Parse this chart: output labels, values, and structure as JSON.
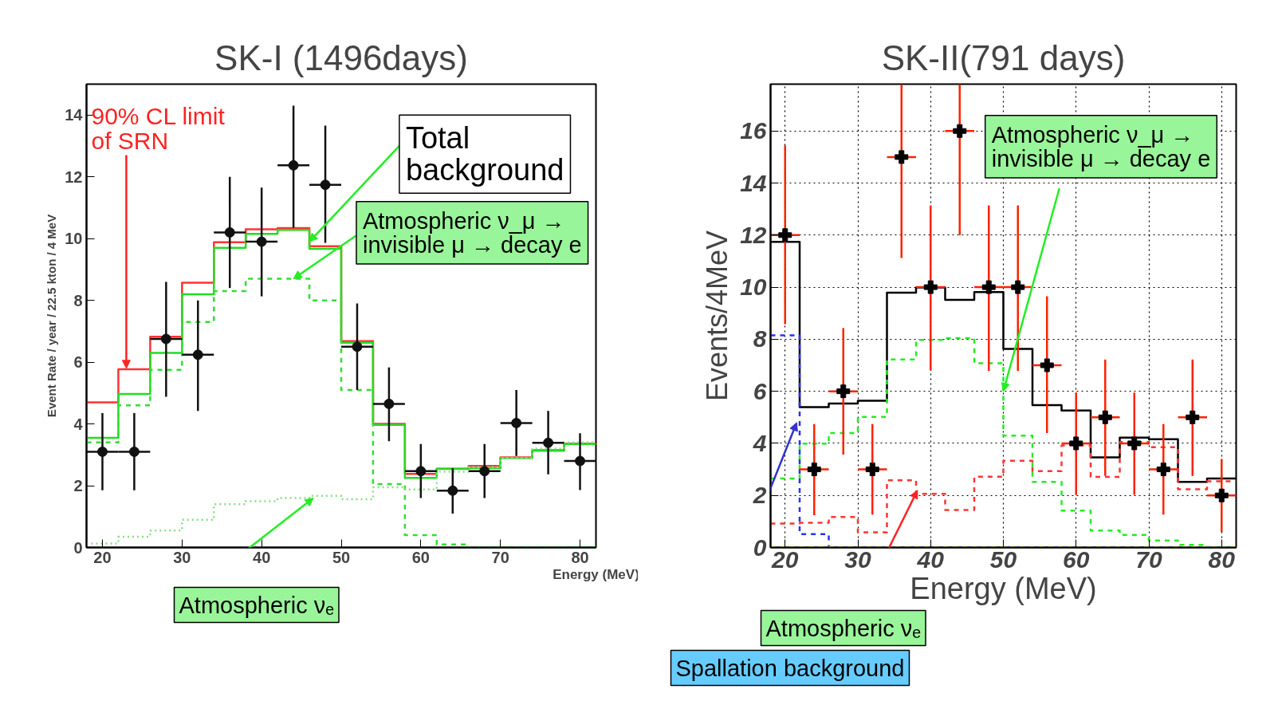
{
  "chart_data": [
    {
      "type": "histogram",
      "title": "SK-I (1496days)",
      "xlabel": "Energy (MeV)",
      "ylabel": "Event Rate / year / 22.5 kton / 4 MeV",
      "bins": [
        18,
        22,
        26,
        30,
        34,
        38,
        42,
        46,
        50,
        54,
        58,
        62,
        66,
        70,
        74,
        78,
        82
      ],
      "xlim": [
        18,
        82
      ],
      "ylim": [
        0,
        15
      ],
      "xticks": [
        20,
        30,
        40,
        50,
        60,
        70,
        80
      ],
      "yticks": [
        0,
        2,
        4,
        6,
        8,
        10,
        12,
        14
      ],
      "grid": false,
      "marker": "circle",
      "series": [
        {
          "color": "#ff3333",
          "line_style": "solid",
          "values": [
            4.7,
            5.77,
            6.82,
            8.57,
            9.88,
            10.3,
            10.34,
            9.75,
            6.68,
            4.0,
            2.38,
            2.55,
            2.64,
            2.92,
            3.15,
            3.36
          ]
        },
        {
          "color": "#22dd22",
          "line_style": "solid",
          "values": [
            3.55,
            4.97,
            6.3,
            8.2,
            9.7,
            10.15,
            10.28,
            9.67,
            6.63,
            3.97,
            2.25,
            2.54,
            2.57,
            2.9,
            3.13,
            3.35
          ]
        },
        {
          "color": "#33dd33",
          "line_style": "dashed",
          "values": [
            3.4,
            4.6,
            5.75,
            7.3,
            8.3,
            8.7,
            8.7,
            8.0,
            5.1,
            2.05,
            0.4,
            0.1,
            0,
            0,
            0,
            0
          ]
        },
        {
          "color": "#88dd88",
          "line_style": "dotted",
          "values": [
            0.13,
            0.35,
            0.55,
            0.9,
            1.4,
            1.5,
            1.6,
            1.67,
            1.56,
            1.95,
            1.88,
            2.45,
            2.6,
            2.9,
            3.2,
            3.4
          ]
        },
        {
          "type": "scatter",
          "color": "#111111",
          "x": [
            20,
            24,
            28,
            32,
            36,
            40,
            44,
            48,
            52,
            56,
            60,
            64,
            68,
            72,
            76,
            80
          ],
          "values": [
            3.1,
            3.1,
            6.75,
            6.24,
            10.2,
            9.9,
            12.37,
            11.74,
            6.5,
            4.65,
            2.47,
            1.84,
            2.47,
            4.03,
            3.39,
            2.8
          ],
          "errors": [
            [
              1.85,
              4.35
            ],
            [
              1.85,
              4.35
            ],
            [
              4.88,
              8.6
            ],
            [
              4.42,
              8.0
            ],
            [
              8.4,
              12.0
            ],
            [
              8.13,
              11.65
            ],
            [
              10.35,
              14.3
            ],
            [
              9.86,
              13.66
            ],
            [
              5.1,
              7.9
            ],
            [
              3.44,
              5.83
            ],
            [
              1.6,
              3.35
            ],
            [
              1.1,
              2.57
            ],
            [
              1.6,
              3.35
            ],
            [
              2.96,
              5.1
            ],
            [
              2.37,
              4.42
            ],
            [
              1.86,
              3.7
            ]
          ],
          "xerrors": [
            2,
            2,
            2,
            2,
            2,
            2,
            2,
            2,
            2,
            2,
            2,
            2,
            2,
            2,
            2,
            2
          ]
        }
      ],
      "annotations": [
        {
          "text": "90% CL limit\nof SRN",
          "x": 23,
          "y": 5.8
        },
        {
          "text": "Total\nbackground",
          "x": 46,
          "y": 9.9
        },
        {
          "text": "Atmospheric ν_μ →\ninvisible μ → decay e",
          "x": 44,
          "y": 8.7
        },
        {
          "text": "Atmospheric νₑ",
          "x": 46.5,
          "y": 1.6
        }
      ]
    },
    {
      "type": "histogram",
      "title": "SK-II(791 days)",
      "xlabel": "Energy (MeV)",
      "ylabel": "Events/4MeV",
      "bins": [
        18,
        22,
        26,
        30,
        34,
        38,
        42,
        46,
        50,
        54,
        58,
        62,
        66,
        70,
        74,
        78,
        82
      ],
      "xlim": [
        18,
        82
      ],
      "ylim": [
        0,
        17.8
      ],
      "xticks": [
        20,
        30,
        40,
        50,
        60,
        70,
        80
      ],
      "yticks": [
        0,
        2,
        4,
        6,
        8,
        10,
        12,
        14,
        16
      ],
      "grid": true,
      "marker": "cross",
      "series": [
        {
          "color": "#000000",
          "line_style": "solid",
          "values": [
            11.74,
            5.39,
            5.53,
            5.64,
            9.79,
            9.99,
            9.51,
            9.81,
            7.63,
            5.47,
            5.26,
            3.46,
            4.22,
            4.16,
            2.52,
            2.65
          ]
        },
        {
          "color": "#22ee22",
          "line_style": "dashed",
          "values": [
            2.65,
            3.99,
            4.4,
            5.02,
            7.22,
            7.97,
            8.04,
            7.08,
            4.3,
            2.52,
            1.42,
            0.65,
            0.48,
            0.27,
            0.1,
            0
          ]
        },
        {
          "color": "#ff3333",
          "line_style": "dashed",
          "values": [
            0.92,
            0.95,
            1.17,
            0.58,
            2.58,
            2.06,
            1.44,
            2.72,
            3.33,
            2.93,
            3.92,
            2.71,
            4.05,
            3.85,
            2.24,
            2.54
          ]
        },
        {
          "color": "#2233ff",
          "line_style": "dashed",
          "values": [
            8.15,
            0.51,
            0,
            0,
            0,
            0,
            0,
            0,
            0,
            0,
            0,
            0,
            0,
            0,
            0,
            0
          ]
        },
        {
          "color": "#eeee00",
          "line_style": "dashed",
          "values": [
            0,
            0,
            0,
            0,
            0,
            0,
            0,
            0,
            0,
            0,
            0,
            0,
            0,
            0,
            0,
            0
          ]
        },
        {
          "type": "scatter",
          "color": "#000000",
          "x": [
            20,
            24,
            28,
            32,
            36,
            40,
            44,
            48,
            52,
            56,
            60,
            64,
            68,
            72,
            76,
            80
          ],
          "values": [
            12,
            3,
            6,
            3,
            15,
            10,
            16,
            10,
            10,
            7,
            4,
            5,
            4,
            3,
            5,
            2
          ],
          "errors": [
            [
              8.58,
              15.45
            ],
            [
              1.24,
              4.74
            ],
            [
              3.57,
              8.43
            ],
            [
              1.26,
              4.74
            ],
            [
              11.12,
              17.8
            ],
            [
              6.8,
              13.14
            ],
            [
              12,
              17.8
            ],
            [
              6.78,
              13.14
            ],
            [
              6.78,
              13.14
            ],
            [
              4.4,
              9.65
            ],
            [
              2.02,
              5.95
            ],
            [
              2.75,
              7.22
            ],
            [
              2.02,
              5.95
            ],
            [
              1.26,
              4.74
            ],
            [
              2.75,
              7.22
            ],
            [
              0.6,
              3.4
            ]
          ],
          "xerrors": [
            2,
            2,
            2,
            2,
            2,
            2,
            2,
            2,
            2,
            2,
            2,
            2,
            2,
            2,
            2,
            2
          ]
        }
      ],
      "annotations": [
        {
          "text": "Atmospheric ν_μ →\ninvisible μ → decay e",
          "x": 50,
          "y": 6
        },
        {
          "text": "Atmospheric νₑ",
          "x": 38.2,
          "y": 2.2
        },
        {
          "text": "Spallation background",
          "x": 21.6,
          "y": 4.8
        }
      ]
    }
  ]
}
